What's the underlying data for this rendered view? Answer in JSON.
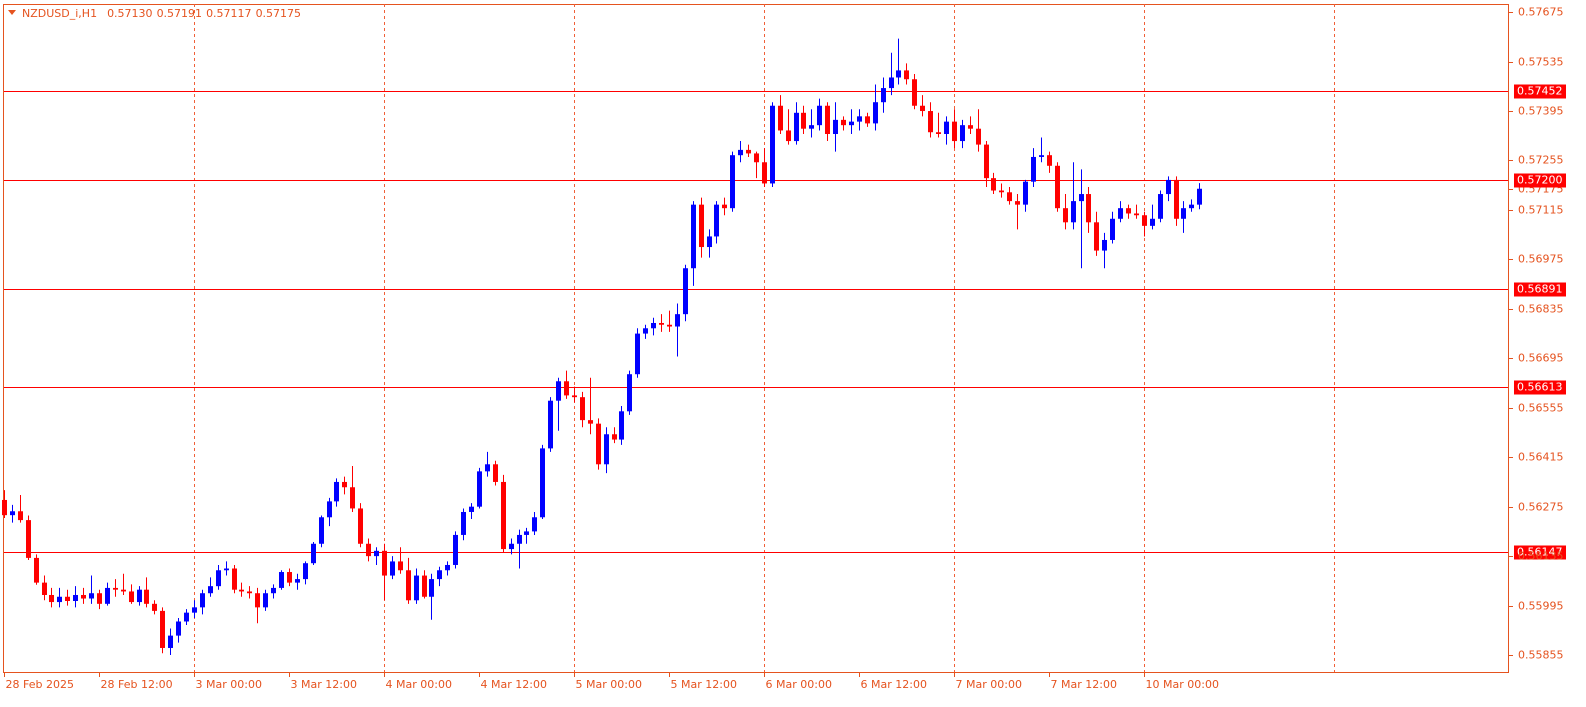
{
  "chart_data": {
    "type": "candlestick",
    "title": "NZDUSD_i,H1",
    "quote_labels": [
      "0.57130",
      "0.57191",
      "0.57117",
      "0.57175"
    ],
    "bull_color": "#0000ff",
    "bear_color": "#ff0000",
    "level_color": "#ff0000",
    "grid_color": "#f06038",
    "ylim": [
      0.55807,
      0.57698
    ],
    "yticks": [
      0.57675,
      0.57535,
      0.57395,
      0.57255,
      0.57115,
      0.56975,
      0.56835,
      0.56695,
      0.56555,
      0.56415,
      0.56275,
      0.56135,
      0.55995,
      0.55855
    ],
    "xlim": [
      0,
      190
    ],
    "xticks": [
      {
        "value": 0,
        "label": "28 Feb 2025"
      },
      {
        "value": 12,
        "label": "28 Feb 12:00"
      },
      {
        "value": 24,
        "label": "3 Mar 00:00"
      },
      {
        "value": 36,
        "label": "3 Mar 12:00"
      },
      {
        "value": 48,
        "label": "4 Mar 00:00"
      },
      {
        "value": 60,
        "label": "4 Mar 12:00"
      },
      {
        "value": 72,
        "label": "5 Mar 00:00"
      },
      {
        "value": 84,
        "label": "5 Mar 12:00"
      },
      {
        "value": 96,
        "label": "6 Mar 00:00"
      },
      {
        "value": 108,
        "label": "6 Mar 12:00"
      },
      {
        "value": 120,
        "label": "7 Mar 00:00"
      },
      {
        "value": 132,
        "label": "7 Mar 12:00"
      },
      {
        "value": 144,
        "label": "10 Mar 00:00"
      }
    ],
    "xgrid": [
      24,
      48,
      72,
      96,
      120,
      144,
      168
    ],
    "levels": [
      0.57452,
      {
        "value": 0.572,
        "label": "0.57200"
      },
      0.56891,
      0.56613,
      0.56147
    ],
    "current_price": 0.57175,
    "candles": [
      [
        0.56294,
        0.56322,
        0.56243,
        0.56251
      ],
      [
        0.56251,
        0.5628,
        0.5623,
        0.56262
      ],
      [
        0.56262,
        0.56308,
        0.5623,
        0.56237
      ],
      [
        0.56237,
        0.5625,
        0.56124,
        0.5613
      ],
      [
        0.5613,
        0.5614,
        0.56054,
        0.5606
      ],
      [
        0.5606,
        0.5608,
        0.5601,
        0.56025
      ],
      [
        0.56025,
        0.56045,
        0.5599,
        0.56005
      ],
      [
        0.56005,
        0.56045,
        0.5599,
        0.5602
      ],
      [
        0.5602,
        0.5604,
        0.55995,
        0.56008
      ],
      [
        0.56008,
        0.5605,
        0.5599,
        0.56025
      ],
      [
        0.56025,
        0.56045,
        0.56,
        0.56015
      ],
      [
        0.56015,
        0.5608,
        0.56,
        0.5603
      ],
      [
        0.5603,
        0.5604,
        0.55985,
        0.56
      ],
      [
        0.56,
        0.5606,
        0.55995,
        0.56045
      ],
      [
        0.56045,
        0.5607,
        0.5602,
        0.5604
      ],
      [
        0.5604,
        0.56085,
        0.56025,
        0.56035
      ],
      [
        0.56035,
        0.56055,
        0.56,
        0.56005
      ],
      [
        0.56005,
        0.5605,
        0.55995,
        0.5604
      ],
      [
        0.5604,
        0.56075,
        0.5599,
        0.56
      ],
      [
        0.56,
        0.5601,
        0.5597,
        0.5598
      ],
      [
        0.5598,
        0.5599,
        0.5586,
        0.55875
      ],
      [
        0.55875,
        0.5593,
        0.55855,
        0.5591
      ],
      [
        0.5591,
        0.5596,
        0.5589,
        0.5595
      ],
      [
        0.5595,
        0.55985,
        0.5594,
        0.55975
      ],
      [
        0.55975,
        0.5601,
        0.5596,
        0.5599
      ],
      [
        0.5599,
        0.5604,
        0.5597,
        0.5603
      ],
      [
        0.5603,
        0.56075,
        0.5602,
        0.5605
      ],
      [
        0.5605,
        0.5611,
        0.5604,
        0.56095
      ],
      [
        0.56095,
        0.5612,
        0.5608,
        0.561
      ],
      [
        0.561,
        0.5611,
        0.5603,
        0.5604
      ],
      [
        0.5604,
        0.5606,
        0.5602,
        0.56035
      ],
      [
        0.56035,
        0.5605,
        0.56015,
        0.5603
      ],
      [
        0.5603,
        0.56045,
        0.55945,
        0.5599
      ],
      [
        0.5599,
        0.5604,
        0.5598,
        0.5603
      ],
      [
        0.5603,
        0.56055,
        0.56015,
        0.56045
      ],
      [
        0.56045,
        0.56095,
        0.5604,
        0.5609
      ],
      [
        0.5609,
        0.561,
        0.5605,
        0.5606
      ],
      [
        0.5606,
        0.56085,
        0.5604,
        0.5607
      ],
      [
        0.5607,
        0.5612,
        0.56055,
        0.56115
      ],
      [
        0.56115,
        0.56175,
        0.5611,
        0.5617
      ],
      [
        0.5617,
        0.5625,
        0.5616,
        0.56245
      ],
      [
        0.56245,
        0.563,
        0.5622,
        0.5629
      ],
      [
        0.5629,
        0.56355,
        0.56275,
        0.56345
      ],
      [
        0.56345,
        0.5636,
        0.5631,
        0.5633
      ],
      [
        0.5633,
        0.5639,
        0.5626,
        0.5627
      ],
      [
        0.5627,
        0.56285,
        0.5616,
        0.5617
      ],
      [
        0.5617,
        0.56185,
        0.5612,
        0.56135
      ],
      [
        0.56135,
        0.5616,
        0.5611,
        0.5615
      ],
      [
        0.5615,
        0.5617,
        0.5601,
        0.5608
      ],
      [
        0.5608,
        0.56135,
        0.5607,
        0.5612
      ],
      [
        0.5612,
        0.5616,
        0.56085,
        0.56095
      ],
      [
        0.56095,
        0.5613,
        0.56,
        0.5601
      ],
      [
        0.5601,
        0.561,
        0.56,
        0.5608
      ],
      [
        0.5608,
        0.56095,
        0.56015,
        0.5602
      ],
      [
        0.5602,
        0.56085,
        0.55955,
        0.5607
      ],
      [
        0.5607,
        0.56105,
        0.5605,
        0.56095
      ],
      [
        0.56095,
        0.5612,
        0.5608,
        0.5611
      ],
      [
        0.5611,
        0.56205,
        0.561,
        0.56195
      ],
      [
        0.56195,
        0.5627,
        0.5618,
        0.5626
      ],
      [
        0.5626,
        0.56285,
        0.5624,
        0.56275
      ],
      [
        0.56275,
        0.56385,
        0.5627,
        0.56375
      ],
      [
        0.56375,
        0.5643,
        0.5636,
        0.56395
      ],
      [
        0.56395,
        0.56405,
        0.56335,
        0.56345
      ],
      [
        0.56345,
        0.56365,
        0.56145,
        0.56155
      ],
      [
        0.56155,
        0.56185,
        0.5614,
        0.5617
      ],
      [
        0.5617,
        0.5621,
        0.561,
        0.56195
      ],
      [
        0.56195,
        0.56215,
        0.5617,
        0.56205
      ],
      [
        0.56205,
        0.5626,
        0.56195,
        0.56245
      ],
      [
        0.56245,
        0.5645,
        0.5624,
        0.5644
      ],
      [
        0.5644,
        0.56585,
        0.5643,
        0.56575
      ],
      [
        0.56575,
        0.5664,
        0.5649,
        0.5663
      ],
      [
        0.5663,
        0.5666,
        0.5658,
        0.5659
      ],
      [
        0.5659,
        0.56615,
        0.5657,
        0.56585
      ],
      [
        0.56585,
        0.566,
        0.565,
        0.5652
      ],
      [
        0.5652,
        0.5664,
        0.5648,
        0.5651
      ],
      [
        0.5651,
        0.56525,
        0.5638,
        0.56395
      ],
      [
        0.56395,
        0.565,
        0.5637,
        0.5648
      ],
      [
        0.5648,
        0.565,
        0.56455,
        0.56465
      ],
      [
        0.56465,
        0.5656,
        0.5645,
        0.56545
      ],
      [
        0.56545,
        0.5666,
        0.56535,
        0.5665
      ],
      [
        0.5665,
        0.5678,
        0.5664,
        0.56765
      ],
      [
        0.56765,
        0.5679,
        0.5675,
        0.5678
      ],
      [
        0.5678,
        0.5681,
        0.5676,
        0.56795
      ],
      [
        0.56795,
        0.5682,
        0.5677,
        0.5679
      ],
      [
        0.5679,
        0.5683,
        0.5677,
        0.56785
      ],
      [
        0.56785,
        0.5685,
        0.567,
        0.5682
      ],
      [
        0.5682,
        0.5696,
        0.568,
        0.5695
      ],
      [
        0.5695,
        0.5714,
        0.569,
        0.5713
      ],
      [
        0.5713,
        0.5715,
        0.5698,
        0.5701
      ],
      [
        0.5701,
        0.5706,
        0.5698,
        0.5704
      ],
      [
        0.5704,
        0.5714,
        0.5702,
        0.5713
      ],
      [
        0.5713,
        0.5715,
        0.571,
        0.5712
      ],
      [
        0.5712,
        0.5728,
        0.5711,
        0.5727
      ],
      [
        0.5727,
        0.5731,
        0.5725,
        0.57285
      ],
      [
        0.57285,
        0.573,
        0.57265,
        0.57275
      ],
      [
        0.57275,
        0.5728,
        0.57205,
        0.5725
      ],
      [
        0.5725,
        0.5729,
        0.5718,
        0.5719
      ],
      [
        0.5719,
        0.5742,
        0.5718,
        0.5741
      ],
      [
        0.5741,
        0.5744,
        0.5733,
        0.5734
      ],
      [
        0.5734,
        0.574,
        0.573,
        0.5731
      ],
      [
        0.5731,
        0.5742,
        0.573,
        0.5739
      ],
      [
        0.5739,
        0.5741,
        0.5733,
        0.57345
      ],
      [
        0.57345,
        0.574,
        0.5732,
        0.57355
      ],
      [
        0.57355,
        0.5743,
        0.5734,
        0.5741
      ],
      [
        0.5741,
        0.5742,
        0.5731,
        0.5733
      ],
      [
        0.5733,
        0.5742,
        0.5728,
        0.5737
      ],
      [
        0.5737,
        0.5738,
        0.5734,
        0.57355
      ],
      [
        0.57355,
        0.574,
        0.5733,
        0.57365
      ],
      [
        0.57365,
        0.574,
        0.5734,
        0.5738
      ],
      [
        0.5738,
        0.5739,
        0.5735,
        0.5736
      ],
      [
        0.5736,
        0.5747,
        0.5734,
        0.5742
      ],
      [
        0.5742,
        0.5749,
        0.5739,
        0.5746
      ],
      [
        0.5746,
        0.5756,
        0.5744,
        0.5749
      ],
      [
        0.5749,
        0.576,
        0.5747,
        0.5751
      ],
      [
        0.5751,
        0.5753,
        0.5747,
        0.57485
      ],
      [
        0.57485,
        0.575,
        0.574,
        0.5741
      ],
      [
        0.5741,
        0.5744,
        0.5738,
        0.57395
      ],
      [
        0.57395,
        0.5742,
        0.5732,
        0.57335
      ],
      [
        0.57335,
        0.5739,
        0.5732,
        0.5733
      ],
      [
        0.5733,
        0.5738,
        0.573,
        0.57365
      ],
      [
        0.57365,
        0.574,
        0.5729,
        0.5731
      ],
      [
        0.5731,
        0.5737,
        0.5729,
        0.57355
      ],
      [
        0.57355,
        0.5738,
        0.5733,
        0.57345
      ],
      [
        0.57345,
        0.574,
        0.5728,
        0.573
      ],
      [
        0.573,
        0.5731,
        0.5718,
        0.57205
      ],
      [
        0.57205,
        0.5722,
        0.5716,
        0.5717
      ],
      [
        0.5717,
        0.5719,
        0.5715,
        0.57165
      ],
      [
        0.57165,
        0.5718,
        0.5713,
        0.5714
      ],
      [
        0.5714,
        0.5716,
        0.5706,
        0.5713
      ],
      [
        0.5713,
        0.572,
        0.5711,
        0.57195
      ],
      [
        0.57195,
        0.5729,
        0.5718,
        0.57265
      ],
      [
        0.57265,
        0.5732,
        0.5725,
        0.5727
      ],
      [
        0.5727,
        0.5728,
        0.5722,
        0.5724
      ],
      [
        0.5724,
        0.5725,
        0.5711,
        0.5712
      ],
      [
        0.5712,
        0.5716,
        0.5706,
        0.5708
      ],
      [
        0.5708,
        0.5725,
        0.5706,
        0.5714
      ],
      [
        0.5714,
        0.5723,
        0.5695,
        0.5716
      ],
      [
        0.5716,
        0.5718,
        0.5705,
        0.5708
      ],
      [
        0.5708,
        0.5711,
        0.56985,
        0.57
      ],
      [
        0.57,
        0.5705,
        0.5695,
        0.5703
      ],
      [
        0.5703,
        0.5711,
        0.5702,
        0.5709
      ],
      [
        0.5709,
        0.5714,
        0.5708,
        0.5712
      ],
      [
        0.5712,
        0.5713,
        0.5709,
        0.57105
      ],
      [
        0.57105,
        0.5713,
        0.5709,
        0.571
      ],
      [
        0.571,
        0.5711,
        0.5704,
        0.5707
      ],
      [
        0.5707,
        0.5713,
        0.5706,
        0.5709
      ],
      [
        0.5709,
        0.5717,
        0.5708,
        0.5716
      ],
      [
        0.5716,
        0.5721,
        0.5714,
        0.572
      ],
      [
        0.572,
        0.5721,
        0.5707,
        0.5709
      ],
      [
        0.5709,
        0.5714,
        0.5705,
        0.5712
      ],
      [
        0.5712,
        0.57145,
        0.5711,
        0.5713
      ],
      [
        0.5713,
        0.57191,
        0.57117,
        0.57175
      ]
    ]
  }
}
